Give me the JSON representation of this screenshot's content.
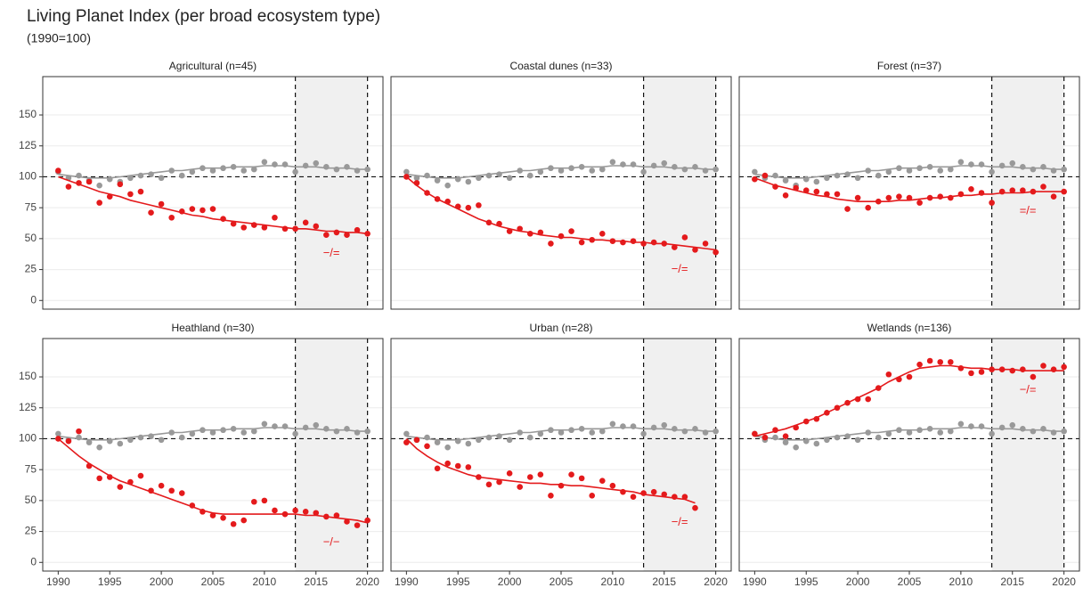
{
  "title": "Living Planet Index (per broad ecosystem type)",
  "subtitle": "(1990=100)",
  "chart_data": [
    {
      "type": "scatter",
      "title": "Agricultural (n=45)",
      "annotation": "−/=",
      "x": [
        1990,
        1991,
        1992,
        1993,
        1994,
        1995,
        1996,
        1997,
        1998,
        1999,
        2000,
        2001,
        2002,
        2003,
        2004,
        2005,
        2006,
        2007,
        2008,
        2009,
        2010,
        2011,
        2012,
        2013,
        2014,
        2015,
        2016,
        2017,
        2018,
        2019,
        2020
      ],
      "series": [
        {
          "color": "#999999",
          "values": [
            104,
            99,
            101,
            97,
            93,
            98,
            96,
            99,
            101,
            102,
            99,
            105,
            101,
            104,
            107,
            105,
            107,
            108,
            105,
            106,
            112,
            110,
            110,
            104,
            109,
            111,
            108,
            106,
            108,
            105,
            106
          ],
          "smooth": [
            102,
            101,
            100,
            99,
            99,
            99,
            100,
            101,
            102,
            103,
            104,
            105,
            105,
            106,
            107,
            107,
            107,
            108,
            108,
            108,
            109,
            109,
            109,
            108,
            108,
            108,
            107,
            107,
            107,
            106,
            106
          ]
        },
        {
          "color": "#e41a1c",
          "values": [
            105,
            92,
            95,
            96,
            79,
            84,
            94,
            86,
            88,
            71,
            78,
            67,
            72,
            74,
            73,
            74,
            66,
            62,
            59,
            61,
            59,
            67,
            58,
            58,
            63,
            60,
            53,
            55,
            53,
            57,
            54
          ],
          "smooth": [
            100,
            97,
            94,
            91,
            88,
            86,
            84,
            81,
            79,
            77,
            75,
            73,
            71,
            69,
            68,
            66,
            65,
            64,
            63,
            62,
            61,
            60,
            59,
            58,
            58,
            57,
            56,
            56,
            55,
            55,
            54
          ]
        }
      ],
      "vlines": [
        2013,
        2020
      ],
      "hline": 100,
      "xlim": [
        1988.5,
        2021.5
      ],
      "ylim": [
        -7,
        181
      ],
      "xticks": [
        1990,
        1995,
        2000,
        2005,
        2010,
        2015,
        2020
      ],
      "yticks": [
        0,
        25,
        50,
        75,
        100,
        125,
        150
      ],
      "grid": true
    },
    {
      "type": "scatter",
      "title": "Coastal dunes (n=33)",
      "annotation": "−/=",
      "x": [
        1990,
        1991,
        1992,
        1993,
        1994,
        1995,
        1996,
        1997,
        1998,
        1999,
        2000,
        2001,
        2002,
        2003,
        2004,
        2005,
        2006,
        2007,
        2008,
        2009,
        2010,
        2011,
        2012,
        2013,
        2014,
        2015,
        2016,
        2017,
        2018,
        2019,
        2020
      ],
      "series": [
        {
          "color": "#999999",
          "values": [
            104,
            99,
            101,
            97,
            93,
            98,
            96,
            99,
            101,
            102,
            99,
            105,
            101,
            104,
            107,
            105,
            107,
            108,
            105,
            106,
            112,
            110,
            110,
            104,
            109,
            111,
            108,
            106,
            108,
            105,
            106
          ],
          "smooth": [
            102,
            101,
            100,
            99,
            99,
            99,
            100,
            101,
            102,
            103,
            104,
            105,
            105,
            106,
            107,
            107,
            107,
            108,
            108,
            108,
            109,
            109,
            109,
            108,
            108,
            108,
            107,
            107,
            107,
            106,
            106
          ]
        },
        {
          "color": "#e41a1c",
          "values": [
            100,
            95,
            87,
            82,
            80,
            76,
            75,
            77,
            63,
            62,
            56,
            58,
            54,
            55,
            46,
            52,
            56,
            47,
            49,
            54,
            48,
            47,
            48,
            46,
            47,
            46,
            43,
            51,
            41,
            46,
            39
          ],
          "smooth": [
            100,
            93,
            87,
            82,
            78,
            74,
            70,
            66,
            63,
            60,
            58,
            56,
            55,
            53,
            52,
            51,
            51,
            50,
            49,
            49,
            48,
            48,
            47,
            47,
            46,
            46,
            45,
            44,
            43,
            42,
            41
          ]
        }
      ],
      "vlines": [
        2013,
        2020
      ],
      "hline": 100,
      "xlim": [
        1988.5,
        2021.5
      ],
      "ylim": [
        -7,
        181
      ],
      "xticks": [
        1990,
        1995,
        2000,
        2005,
        2010,
        2015,
        2020
      ],
      "yticks": [
        0,
        25,
        50,
        75,
        100,
        125,
        150
      ],
      "grid": true
    },
    {
      "type": "scatter",
      "title": "Forest (n=37)",
      "annotation": "=/=",
      "x": [
        1990,
        1991,
        1992,
        1993,
        1994,
        1995,
        1996,
        1997,
        1998,
        1999,
        2000,
        2001,
        2002,
        2003,
        2004,
        2005,
        2006,
        2007,
        2008,
        2009,
        2010,
        2011,
        2012,
        2013,
        2014,
        2015,
        2016,
        2017,
        2018,
        2019,
        2020
      ],
      "series": [
        {
          "color": "#999999",
          "values": [
            104,
            99,
            101,
            97,
            93,
            98,
            96,
            99,
            101,
            102,
            99,
            105,
            101,
            104,
            107,
            105,
            107,
            108,
            105,
            106,
            112,
            110,
            110,
            104,
            109,
            111,
            108,
            106,
            108,
            105,
            106
          ],
          "smooth": [
            102,
            101,
            100,
            99,
            99,
            99,
            100,
            101,
            102,
            103,
            104,
            105,
            105,
            106,
            107,
            107,
            107,
            108,
            108,
            108,
            109,
            109,
            109,
            108,
            108,
            108,
            107,
            107,
            107,
            106,
            106
          ]
        },
        {
          "color": "#e41a1c",
          "values": [
            98,
            101,
            92,
            85,
            91,
            89,
            88,
            86,
            86,
            74,
            83,
            75,
            80,
            83,
            84,
            83,
            79,
            83,
            84,
            83,
            86,
            90,
            87,
            79,
            88,
            89,
            89,
            88,
            92,
            84,
            88
          ],
          "smooth": [
            99,
            96,
            93,
            91,
            89,
            87,
            85,
            84,
            82,
            81,
            80,
            80,
            80,
            80,
            81,
            81,
            82,
            83,
            83,
            84,
            85,
            85,
            86,
            86,
            87,
            87,
            87,
            88,
            88,
            88,
            88
          ]
        }
      ],
      "vlines": [
        2013,
        2020
      ],
      "hline": 100,
      "xlim": [
        1988.5,
        2021.5
      ],
      "ylim": [
        -7,
        181
      ],
      "xticks": [
        1990,
        1995,
        2000,
        2005,
        2010,
        2015,
        2020
      ],
      "yticks": [
        0,
        25,
        50,
        75,
        100,
        125,
        150
      ],
      "grid": true
    },
    {
      "type": "scatter",
      "title": "Heathland (n=30)",
      "annotation": "−/−",
      "x": [
        1990,
        1991,
        1992,
        1993,
        1994,
        1995,
        1996,
        1997,
        1998,
        1999,
        2000,
        2001,
        2002,
        2003,
        2004,
        2005,
        2006,
        2007,
        2008,
        2009,
        2010,
        2011,
        2012,
        2013,
        2014,
        2015,
        2016,
        2017,
        2018,
        2019,
        2020
      ],
      "series": [
        {
          "color": "#999999",
          "values": [
            104,
            99,
            101,
            97,
            93,
            98,
            96,
            99,
            101,
            102,
            99,
            105,
            101,
            104,
            107,
            105,
            107,
            108,
            105,
            106,
            112,
            110,
            110,
            104,
            109,
            111,
            108,
            106,
            108,
            105,
            106
          ],
          "smooth": [
            102,
            101,
            100,
            99,
            99,
            99,
            100,
            101,
            102,
            103,
            104,
            105,
            105,
            106,
            107,
            107,
            107,
            108,
            108,
            108,
            109,
            109,
            109,
            108,
            108,
            108,
            107,
            107,
            107,
            106,
            106
          ]
        },
        {
          "color": "#e41a1c",
          "values": [
            100,
            98,
            106,
            78,
            68,
            69,
            61,
            65,
            70,
            58,
            62,
            58,
            56,
            46,
            41,
            38,
            36,
            31,
            34,
            49,
            50,
            42,
            39,
            42,
            41,
            40,
            37,
            38,
            33,
            30,
            34
          ],
          "smooth": [
            100,
            93,
            86,
            80,
            75,
            70,
            66,
            63,
            60,
            57,
            54,
            51,
            48,
            45,
            42,
            40,
            39,
            39,
            39,
            39,
            39,
            39,
            39,
            39,
            38,
            38,
            37,
            36,
            35,
            34,
            32
          ]
        }
      ],
      "vlines": [
        2013,
        2020
      ],
      "hline": 100,
      "xlim": [
        1988.5,
        2021.5
      ],
      "ylim": [
        -7,
        181
      ],
      "xticks": [
        1990,
        1995,
        2000,
        2005,
        2010,
        2015,
        2020
      ],
      "yticks": [
        0,
        25,
        50,
        75,
        100,
        125,
        150
      ],
      "grid": true
    },
    {
      "type": "scatter",
      "title": "Urban (n=28)",
      "annotation": "−/=",
      "x": [
        1990,
        1991,
        1992,
        1993,
        1994,
        1995,
        1996,
        1997,
        1998,
        1999,
        2000,
        2001,
        2002,
        2003,
        2004,
        2005,
        2006,
        2007,
        2008,
        2009,
        2010,
        2011,
        2012,
        2013,
        2014,
        2015,
        2016,
        2017,
        2018,
        2019,
        2020
      ],
      "series": [
        {
          "color": "#999999",
          "values": [
            104,
            99,
            101,
            97,
            93,
            98,
            96,
            99,
            101,
            102,
            99,
            105,
            101,
            104,
            107,
            105,
            107,
            108,
            105,
            106,
            112,
            110,
            110,
            104,
            109,
            111,
            108,
            106,
            108,
            105,
            106
          ],
          "smooth": [
            102,
            101,
            100,
            99,
            99,
            99,
            100,
            101,
            102,
            103,
            104,
            105,
            105,
            106,
            107,
            107,
            107,
            108,
            108,
            108,
            109,
            109,
            109,
            108,
            108,
            108,
            107,
            107,
            107,
            106,
            106
          ]
        },
        {
          "color": "#e41a1c",
          "values": [
            97,
            99,
            94,
            76,
            80,
            78,
            77,
            69,
            63,
            65,
            72,
            61,
            69,
            71,
            54,
            62,
            71,
            68,
            54,
            66,
            62,
            57,
            53,
            56,
            57,
            55,
            53,
            53,
            44,
            null,
            null
          ],
          "smooth": [
            100,
            92,
            86,
            81,
            77,
            74,
            71,
            69,
            68,
            67,
            66,
            65,
            64,
            64,
            63,
            63,
            62,
            62,
            61,
            60,
            59,
            58,
            57,
            55,
            54,
            53,
            52,
            51,
            48,
            null,
            null
          ]
        }
      ],
      "vlines": [
        2013,
        2020
      ],
      "hline": 100,
      "xlim": [
        1988.5,
        2021.5
      ],
      "ylim": [
        -7,
        181
      ],
      "xticks": [
        1990,
        1995,
        2000,
        2005,
        2010,
        2015,
        2020
      ],
      "yticks": [
        0,
        25,
        50,
        75,
        100,
        125,
        150
      ],
      "grid": true
    },
    {
      "type": "scatter",
      "title": "Wetlands (n=136)",
      "annotation": "−/=",
      "x": [
        1990,
        1991,
        1992,
        1993,
        1994,
        1995,
        1996,
        1997,
        1998,
        1999,
        2000,
        2001,
        2002,
        2003,
        2004,
        2005,
        2006,
        2007,
        2008,
        2009,
        2010,
        2011,
        2012,
        2013,
        2014,
        2015,
        2016,
        2017,
        2018,
        2019,
        2020
      ],
      "series": [
        {
          "color": "#999999",
          "values": [
            104,
            99,
            101,
            97,
            93,
            98,
            96,
            99,
            101,
            102,
            99,
            105,
            101,
            104,
            107,
            105,
            107,
            108,
            105,
            106,
            112,
            110,
            110,
            104,
            109,
            111,
            108,
            106,
            108,
            105,
            106
          ],
          "smooth": [
            102,
            101,
            100,
            99,
            99,
            99,
            100,
            101,
            102,
            103,
            104,
            105,
            105,
            106,
            107,
            107,
            107,
            108,
            108,
            108,
            109,
            109,
            109,
            108,
            108,
            108,
            107,
            107,
            107,
            106,
            106
          ]
        },
        {
          "color": "#e41a1c",
          "values": [
            104,
            101,
            107,
            102,
            109,
            114,
            116,
            121,
            125,
            129,
            132,
            132,
            141,
            152,
            148,
            150,
            160,
            163,
            162,
            162,
            157,
            153,
            154,
            156,
            156,
            155,
            156,
            150,
            159,
            156,
            158
          ],
          "smooth": [
            102,
            104,
            106,
            108,
            111,
            114,
            117,
            121,
            125,
            129,
            133,
            137,
            141,
            146,
            150,
            154,
            157,
            158,
            159,
            159,
            158,
            157,
            157,
            156,
            156,
            156,
            155,
            155,
            155,
            155,
            155
          ]
        }
      ],
      "vlines": [
        2013,
        2020
      ],
      "hline": 100,
      "xlim": [
        1988.5,
        2021.5
      ],
      "ylim": [
        -7,
        181
      ],
      "xticks": [
        1990,
        1995,
        2000,
        2005,
        2010,
        2015,
        2020
      ],
      "yticks": [
        0,
        25,
        50,
        75,
        100,
        125,
        150
      ],
      "grid": true
    }
  ]
}
